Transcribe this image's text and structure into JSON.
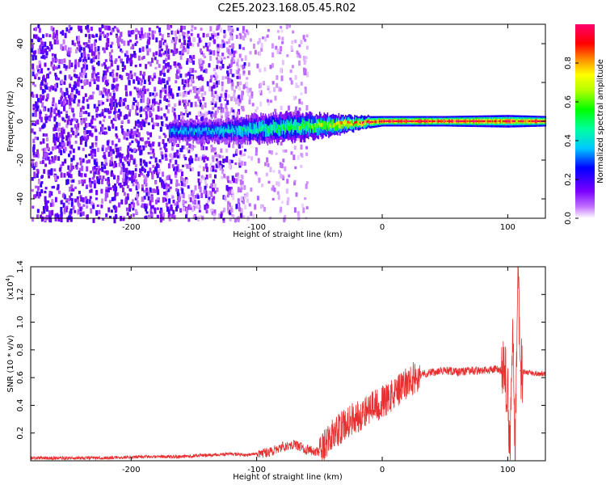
{
  "title": "C2E5.2023.168.05.45.R02",
  "chart_data": [
    {
      "type": "heatmap",
      "xlabel": "Height of straight line (km)",
      "ylabel": "Frequency (Hz)",
      "xlim": [
        -280,
        130
      ],
      "ylim": [
        -50,
        50
      ],
      "xticks": [
        -200,
        -100,
        0,
        100
      ],
      "yticks": [
        -40,
        -20,
        0,
        20,
        40
      ],
      "colorbar": {
        "label": "Normalized spectral amplitude",
        "range": [
          0,
          1
        ],
        "ticks": [
          0.0,
          0.2,
          0.4,
          0.6,
          0.8
        ]
      },
      "features": {
        "noise_regions": [
          {
            "x_range": [
              -280,
              -110
            ],
            "density": "high",
            "level": 0.12
          },
          {
            "x_range": [
              -110,
              -60
            ],
            "density": "low",
            "level": 0.04
          }
        ],
        "signal_band": [
          {
            "x": -170,
            "freq": -5,
            "width": 3,
            "level": 0.35
          },
          {
            "x": -130,
            "freq": -5,
            "width": 3,
            "level": 0.4
          },
          {
            "x": -100,
            "freq": -4,
            "width": 4,
            "level": 0.45
          },
          {
            "x": -70,
            "freq": -3,
            "width": 4,
            "level": 0.55
          },
          {
            "x": -40,
            "freq": -2,
            "width": 3,
            "level": 0.7
          },
          {
            "x": -20,
            "freq": -1,
            "width": 2,
            "level": 0.85
          },
          {
            "x": 0,
            "freq": 0,
            "width": 1.5,
            "level": 0.95
          },
          {
            "x": 50,
            "freq": 0,
            "width": 1.5,
            "level": 0.95
          },
          {
            "x": 100,
            "freq": 0,
            "width": 1.8,
            "level": 0.9
          },
          {
            "x": 130,
            "freq": 0,
            "width": 1.5,
            "level": 0.95
          }
        ]
      }
    },
    {
      "type": "line",
      "xlabel": "Height of straight line (km)",
      "ylabel": "SNR (10 * v/v)",
      "yscale_label": "(x10",
      "yscale_exp": "4",
      "yscale_close": ")",
      "xlim": [
        -280,
        130
      ],
      "ylim": [
        0,
        1.4
      ],
      "xticks": [
        -200,
        -100,
        0,
        100
      ],
      "yticks": [
        0.2,
        0.4,
        0.6,
        0.8,
        1.0,
        1.2,
        1.4
      ],
      "series": [
        {
          "color": "#e83030",
          "x": [
            -280,
            -250,
            -220,
            -190,
            -160,
            -140,
            -120,
            -110,
            -100,
            -90,
            -80,
            -70,
            -60,
            -50,
            -45,
            -40,
            -35,
            -30,
            -25,
            -20,
            -15,
            -10,
            -5,
            0,
            5,
            10,
            15,
            20,
            25,
            30,
            40,
            50,
            60,
            70,
            80,
            90,
            95,
            100,
            102,
            104,
            106,
            108,
            110,
            115,
            120,
            130
          ],
          "y": [
            0.02,
            0.02,
            0.02,
            0.03,
            0.03,
            0.04,
            0.05,
            0.04,
            0.05,
            0.06,
            0.1,
            0.12,
            0.08,
            0.06,
            0.12,
            0.18,
            0.22,
            0.26,
            0.3,
            0.32,
            0.35,
            0.38,
            0.4,
            0.42,
            0.45,
            0.48,
            0.52,
            0.56,
            0.6,
            0.62,
            0.64,
            0.65,
            0.64,
            0.65,
            0.65,
            0.66,
            0.65,
            0.55,
            0.05,
            0.9,
            0.02,
            1.4,
            0.65,
            0.64,
            0.63,
            0.63
          ]
        }
      ]
    }
  ]
}
